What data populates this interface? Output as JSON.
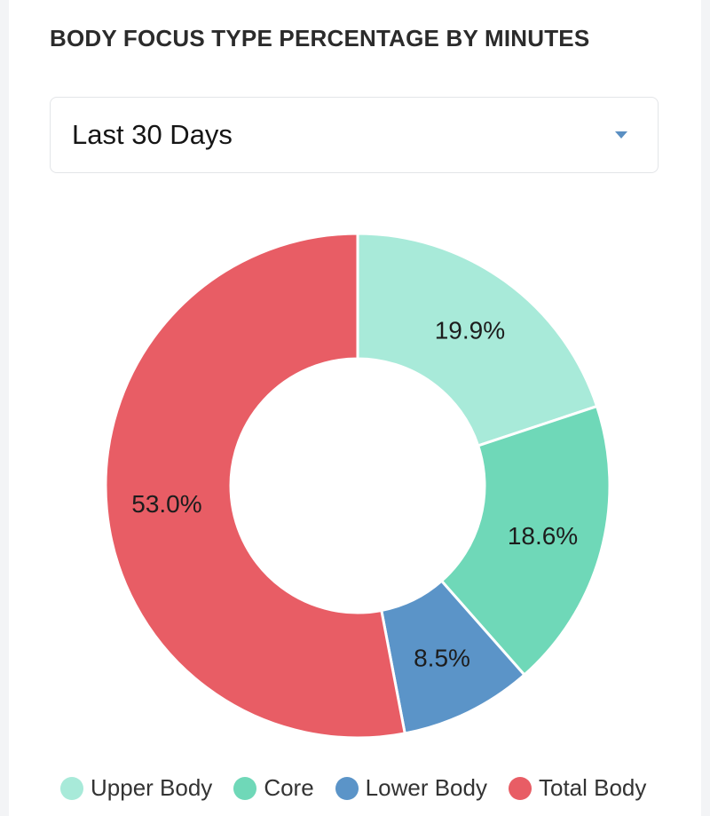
{
  "header": {
    "title": "BODY FOCUS TYPE PERCENTAGE BY MINUTES"
  },
  "filter": {
    "selected": "Last 30 Days",
    "icon": "caret-down-icon"
  },
  "chart_data": {
    "type": "pie",
    "donut": true,
    "labels": [
      "Upper Body",
      "Core",
      "Lower Body",
      "Total Body"
    ],
    "values": [
      19.9,
      18.6,
      8.5,
      53.0
    ],
    "display_labels": [
      "19.9%",
      "18.6%",
      "8.5%",
      "53.0%"
    ],
    "colors": [
      "#a8ead9",
      "#6fd8b8",
      "#5b94c8",
      "#e85d65"
    ],
    "start": "top",
    "direction": "clockwise",
    "legend_position": "bottom"
  },
  "legend": {
    "items": [
      {
        "label": "Upper Body",
        "color": "#a8ead9"
      },
      {
        "label": "Core",
        "color": "#6fd8b8"
      },
      {
        "label": "Lower Body",
        "color": "#5b94c8"
      },
      {
        "label": "Total Body",
        "color": "#e85d65"
      }
    ]
  }
}
